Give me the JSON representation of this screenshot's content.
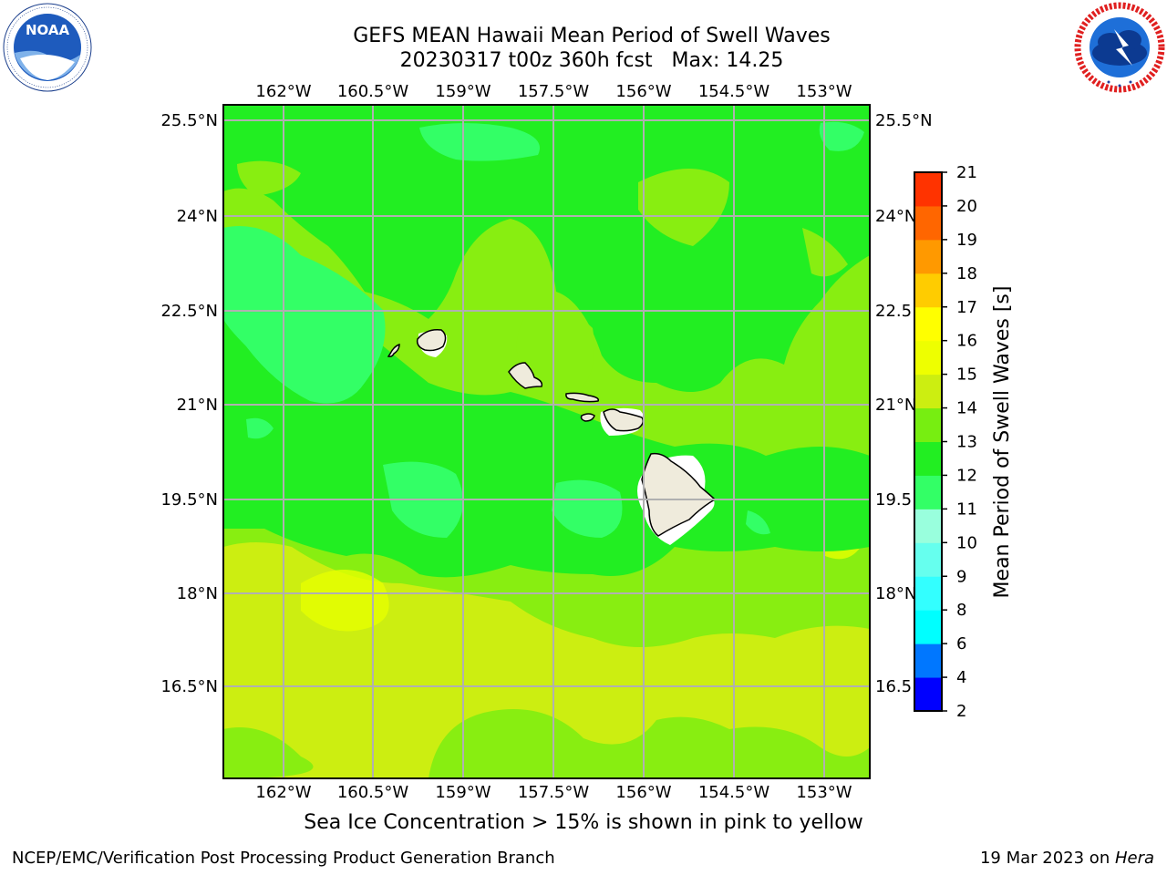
{
  "header": {
    "title_line1": "GEFS MEAN Hawaii Mean Period of Swell Waves",
    "title_line2": "20230317 t00z 360h fcst   Max: 14.25"
  },
  "logos": {
    "left": {
      "name": "noaa-logo",
      "text": "NOAA",
      "ring_text": "NATIONAL OCEANIC AND ATMOSPHERIC ADMINISTRATION · U.S. DEPARTMENT OF COMMERCE"
    },
    "right": {
      "name": "nws-logo",
      "ring_text": "NATIONAL WEATHER SERVICE"
    }
  },
  "map": {
    "lon_ticks": [
      "162°W",
      "160.5°W",
      "159°W",
      "157.5°W",
      "156°W",
      "154.5°W",
      "153°W"
    ],
    "lat_ticks": [
      "25.5°N",
      "24°N",
      "22.5°N",
      "21°N",
      "19.5°N",
      "18°N",
      "16.5°N"
    ],
    "lat_ticks_right": [
      "25.5°N",
      "24°N",
      "22.5",
      "21°N",
      "19.5",
      "18°N",
      "16.5"
    ],
    "field_max": 14.25,
    "colors": {
      "ocean_11_12": "#22ee22",
      "ocean_12_13": "#88ee11",
      "ocean_13_14": "#ccee11",
      "ocean_14_15": "#eeff00",
      "ocean_10_11": "#33ff66",
      "land": "#efebdc",
      "grid": "#b0b0b0"
    }
  },
  "colorbar": {
    "label": "Mean Period of Swell Waves [s]",
    "levels": [
      "2",
      "4",
      "6",
      "8",
      "9",
      "10",
      "11",
      "12",
      "13",
      "14",
      "15",
      "16",
      "17",
      "18",
      "19",
      "20",
      "21"
    ],
    "colors": [
      "#0000ff",
      "#0077ff",
      "#00ffff",
      "#33ffff",
      "#66ffee",
      "#99ffdd",
      "#33ff66",
      "#22ee22",
      "#77ee11",
      "#ccee11",
      "#eeff00",
      "#ffff00",
      "#ffcc00",
      "#ff9900",
      "#ff6600",
      "#ff3300",
      "#ff0000"
    ]
  },
  "note": "Sea Ice Concentration > 15% is shown in pink to yellow",
  "footer": {
    "left": "NCEP/EMC/Verification Post Processing Product Generation Branch",
    "right_date": "19 Mar 2023 on ",
    "right_machine": "Hera"
  }
}
